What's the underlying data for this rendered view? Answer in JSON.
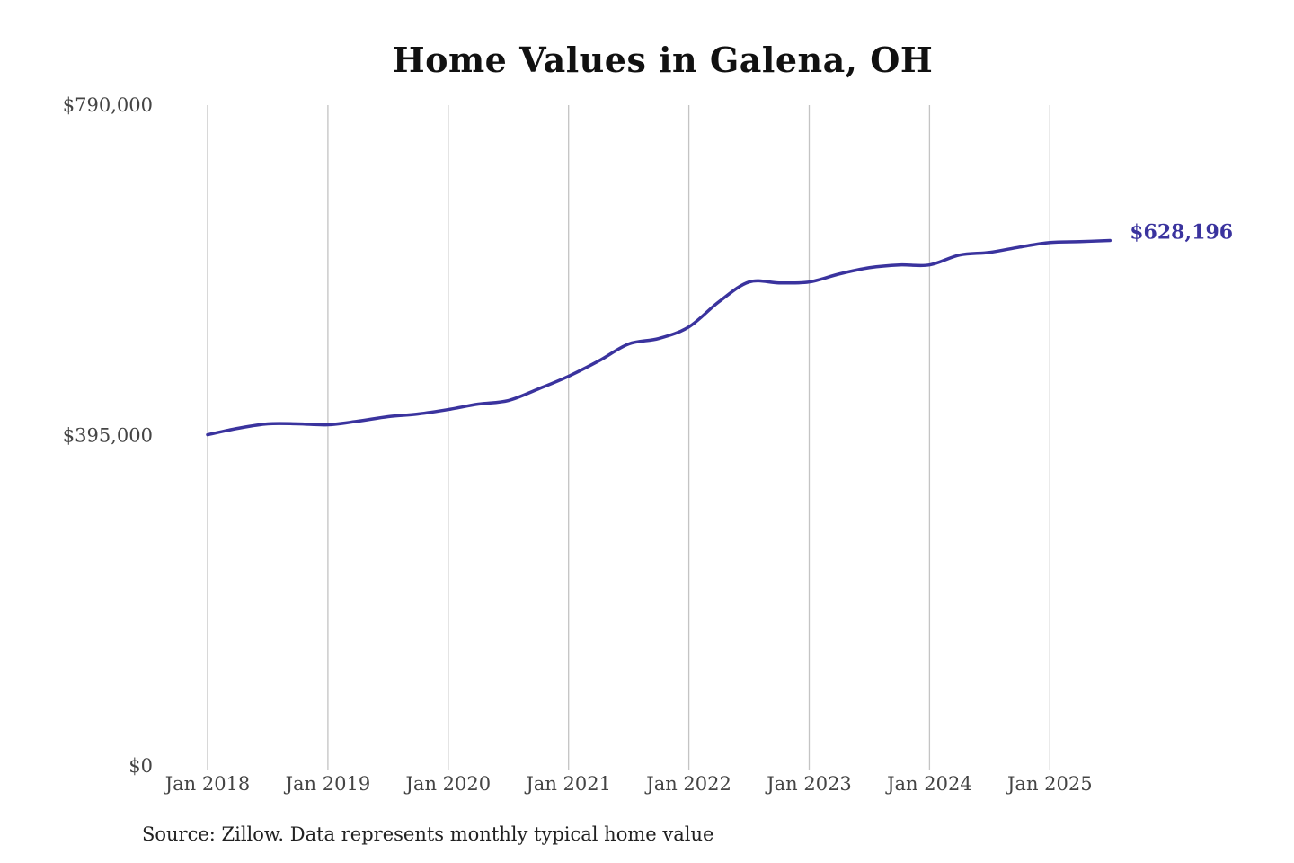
{
  "chart_data": {
    "type": "line",
    "title": "Home Values in Galena, OH",
    "source": "Source: Zillow. Data represents monthly typical home value",
    "xlabel": "",
    "ylabel": "",
    "ylim": [
      0,
      790000
    ],
    "y_ticks": [
      {
        "value": 0,
        "label": "$0"
      },
      {
        "value": 395000,
        "label": "$395,000"
      },
      {
        "value": 790000,
        "label": "$790,000"
      }
    ],
    "x_ticks": [
      {
        "value": "2018-01",
        "label": "Jan 2018"
      },
      {
        "value": "2019-01",
        "label": "Jan 2019"
      },
      {
        "value": "2020-01",
        "label": "Jan 2020"
      },
      {
        "value": "2021-01",
        "label": "Jan 2021"
      },
      {
        "value": "2022-01",
        "label": "Jan 2022"
      },
      {
        "value": "2023-01",
        "label": "Jan 2023"
      },
      {
        "value": "2024-01",
        "label": "Jan 2024"
      },
      {
        "value": "2025-01",
        "label": "Jan 2025"
      }
    ],
    "grid": "vertical",
    "line_color": "#3a339e",
    "end_label": "$628,196",
    "x": [
      "2018-01",
      "2018-04",
      "2018-07",
      "2018-10",
      "2019-01",
      "2019-04",
      "2019-07",
      "2019-10",
      "2020-01",
      "2020-04",
      "2020-07",
      "2020-10",
      "2021-01",
      "2021-04",
      "2021-07",
      "2021-10",
      "2022-01",
      "2022-04",
      "2022-07",
      "2022-10",
      "2023-01",
      "2023-04",
      "2023-07",
      "2023-10",
      "2024-01",
      "2024-04",
      "2024-07",
      "2024-10",
      "2025-01",
      "2025-04",
      "2025-07"
    ],
    "values": [
      396000,
      403600,
      409000,
      409000,
      407900,
      412200,
      417600,
      420800,
      426100,
      432600,
      436900,
      450800,
      465900,
      484100,
      504500,
      511000,
      524900,
      555000,
      578600,
      577500,
      578600,
      588200,
      595700,
      599000,
      599000,
      610800,
      614000,
      620400,
      625800,
      626900,
      628196
    ]
  }
}
